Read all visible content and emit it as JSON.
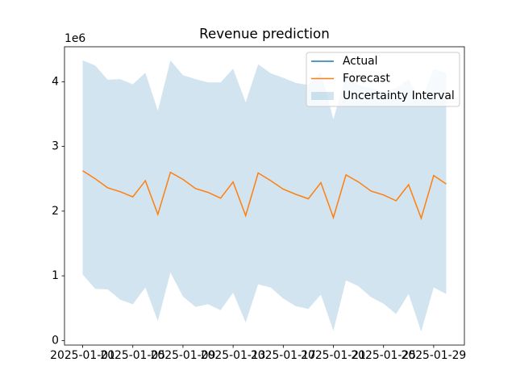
{
  "chart_data": {
    "type": "line",
    "title": "Revenue prediction",
    "y_offset_label": "1e6",
    "x": [
      "2025-01-01",
      "2025-01-02",
      "2025-01-03",
      "2025-01-04",
      "2025-01-05",
      "2025-01-06",
      "2025-01-07",
      "2025-01-08",
      "2025-01-09",
      "2025-01-10",
      "2025-01-11",
      "2025-01-12",
      "2025-01-13",
      "2025-01-14",
      "2025-01-15",
      "2025-01-16",
      "2025-01-17",
      "2025-01-18",
      "2025-01-19",
      "2025-01-20",
      "2025-01-21",
      "2025-01-22",
      "2025-01-23",
      "2025-01-24",
      "2025-01-25",
      "2025-01-26",
      "2025-01-27",
      "2025-01-28",
      "2025-01-29",
      "2025-01-30"
    ],
    "series": [
      {
        "name": "Actual",
        "color": "#1f77b4",
        "values": [
          null,
          null,
          null,
          null,
          null,
          null,
          null,
          null,
          null,
          null,
          null,
          null,
          null,
          null,
          null,
          null,
          null,
          null,
          null,
          null,
          null,
          null,
          null,
          null,
          null,
          null,
          null,
          null,
          null,
          null
        ]
      },
      {
        "name": "Forecast",
        "color": "#ff7f0e",
        "values": [
          2.625,
          2.5,
          2.36,
          2.3,
          2.22,
          2.47,
          1.95,
          2.6,
          2.49,
          2.35,
          2.29,
          2.2,
          2.45,
          1.93,
          2.59,
          2.47,
          2.34,
          2.26,
          2.19,
          2.44,
          1.9,
          2.56,
          2.45,
          2.31,
          2.25,
          2.16,
          2.41,
          1.89,
          2.55,
          2.42
        ]
      },
      {
        "name": "Uncertainty Interval",
        "color": "#1f77b4",
        "opacity": 0.2,
        "type": "band",
        "upper": [
          4.33,
          4.25,
          4.03,
          4.04,
          3.96,
          4.14,
          3.55,
          4.33,
          4.1,
          4.04,
          3.99,
          3.99,
          4.2,
          3.68,
          4.27,
          4.13,
          4.06,
          3.98,
          3.95,
          4.15,
          3.42,
          4.1,
          3.95,
          3.9,
          3.85,
          3.9,
          4.04,
          3.7,
          4.2,
          4.13
        ],
        "lower": [
          1.02,
          0.8,
          0.79,
          0.63,
          0.56,
          0.82,
          0.3,
          1.05,
          0.68,
          0.52,
          0.56,
          0.47,
          0.74,
          0.28,
          0.87,
          0.82,
          0.65,
          0.53,
          0.49,
          0.71,
          0.15,
          0.93,
          0.84,
          0.67,
          0.57,
          0.41,
          0.72,
          0.14,
          0.82,
          0.72
        ]
      }
    ],
    "xlim": [
      "2024-12-30T13:12:00Z",
      "2025-01-31T10:48:00Z"
    ],
    "xticks": [
      "2025-01-01",
      "2025-01-05",
      "2025-01-09",
      "2025-01-13",
      "2025-01-17",
      "2025-01-21",
      "2025-01-25",
      "2025-01-29"
    ],
    "ylim": [
      -0.07,
      4.54
    ],
    "yticks": [
      0,
      1,
      2,
      3,
      4
    ],
    "legend": "upper right"
  }
}
